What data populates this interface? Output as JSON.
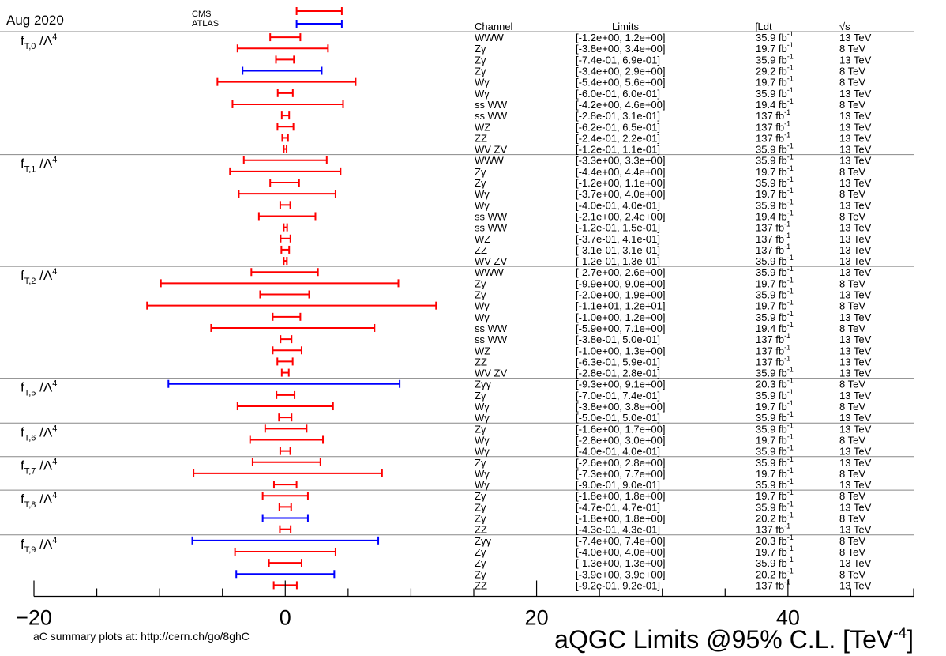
{
  "header": {
    "date": "Aug 2020",
    "legend": [
      {
        "name": "CMS",
        "color": "#ff0000"
      },
      {
        "name": "ATLAS",
        "color": "#0000ff"
      }
    ],
    "columns": {
      "channel": "Channel",
      "limits": "Limits",
      "lumi": "∫Ldt",
      "energy": "√s"
    }
  },
  "footer": {
    "note": "aC summary plots at: http://cern.ch/go/8ghC",
    "title": "aQGC Limits @95% C.L. [TeV",
    "title_sup": "-4",
    "title_end": "]"
  },
  "colors": {
    "cms": "#ff0000",
    "atlas": "#0000ff"
  },
  "chart_data": {
    "type": "interval",
    "title": "aQGC Limits @95% C.L. [TeV-4]",
    "xlim": [
      -20,
      50
    ],
    "x_ticks": [
      -20,
      0,
      20,
      40
    ],
    "grid": false,
    "legend_position": "top-center",
    "sections": [
      {
        "op": "fT,0",
        "rows": [
          {
            "channel": "WWW",
            "exp": "CMS",
            "lo": -1.2,
            "hi": 1.2,
            "limits": "[-1.2e+00, 1.2e+00]",
            "lumi": "35.9 fb",
            "energy": "13 TeV"
          },
          {
            "channel": "Zγ",
            "exp": "CMS",
            "lo": -3.8,
            "hi": 3.4,
            "limits": "[-3.8e+00, 3.4e+00]",
            "lumi": "19.7 fb",
            "energy": "8 TeV"
          },
          {
            "channel": "Zγ",
            "exp": "CMS",
            "lo": -0.74,
            "hi": 0.69,
            "limits": "[-7.4e-01, 6.9e-01]",
            "lumi": "35.9 fb",
            "energy": "13 TeV"
          },
          {
            "channel": "Zγ",
            "exp": "ATLAS",
            "lo": -3.4,
            "hi": 2.9,
            "limits": "[-3.4e+00, 2.9e+00]",
            "lumi": "29.2 fb",
            "energy": "8 TeV"
          },
          {
            "channel": "Wγ",
            "exp": "CMS",
            "lo": -5.4,
            "hi": 5.6,
            "limits": "[-5.4e+00, 5.6e+00]",
            "lumi": "19.7 fb",
            "energy": "8 TeV"
          },
          {
            "channel": "Wγ",
            "exp": "CMS",
            "lo": -0.6,
            "hi": 0.6,
            "limits": "[-6.0e-01, 6.0e-01]",
            "lumi": "35.9 fb",
            "energy": "13 TeV"
          },
          {
            "channel": "ss WW",
            "exp": "CMS",
            "lo": -4.2,
            "hi": 4.6,
            "limits": "[-4.2e+00, 4.6e+00]",
            "lumi": "19.4 fb",
            "energy": "8 TeV"
          },
          {
            "channel": "ss WW",
            "exp": "CMS",
            "lo": -0.28,
            "hi": 0.31,
            "limits": "[-2.8e-01, 3.1e-01]",
            "lumi": "137 fb",
            "energy": "13 TeV"
          },
          {
            "channel": "WZ",
            "exp": "CMS",
            "lo": -0.62,
            "hi": 0.65,
            "limits": "[-6.2e-01, 6.5e-01]",
            "lumi": "137 fb",
            "energy": "13 TeV"
          },
          {
            "channel": "ZZ",
            "exp": "CMS",
            "lo": -0.24,
            "hi": 0.22,
            "limits": "[-2.4e-01, 2.2e-01]",
            "lumi": "137 fb",
            "energy": "13 TeV"
          },
          {
            "channel": "WV ZV",
            "exp": "CMS",
            "lo": -0.12,
            "hi": 0.11,
            "limits": "[-1.2e-01, 1.1e-01]",
            "lumi": "35.9 fb",
            "energy": "13 TeV"
          }
        ]
      },
      {
        "op": "fT,1",
        "rows": [
          {
            "channel": "WWW",
            "exp": "CMS",
            "lo": -3.3,
            "hi": 3.3,
            "limits": "[-3.3e+00, 3.3e+00]",
            "lumi": "35.9 fb",
            "energy": "13 TeV"
          },
          {
            "channel": "Zγ",
            "exp": "CMS",
            "lo": -4.4,
            "hi": 4.4,
            "limits": "[-4.4e+00, 4.4e+00]",
            "lumi": "19.7 fb",
            "energy": "8 TeV"
          },
          {
            "channel": "Zγ",
            "exp": "CMS",
            "lo": -1.2,
            "hi": 1.1,
            "limits": "[-1.2e+00, 1.1e+00]",
            "lumi": "35.9 fb",
            "energy": "13 TeV"
          },
          {
            "channel": "Wγ",
            "exp": "CMS",
            "lo": -3.7,
            "hi": 4.0,
            "limits": "[-3.7e+00, 4.0e+00]",
            "lumi": "19.7 fb",
            "energy": "8 TeV"
          },
          {
            "channel": "Wγ",
            "exp": "CMS",
            "lo": -0.4,
            "hi": 0.4,
            "limits": "[-4.0e-01, 4.0e-01]",
            "lumi": "35.9 fb",
            "energy": "13 TeV"
          },
          {
            "channel": "ss WW",
            "exp": "CMS",
            "lo": -2.1,
            "hi": 2.4,
            "limits": "[-2.1e+00, 2.4e+00]",
            "lumi": "19.4 fb",
            "energy": "8 TeV"
          },
          {
            "channel": "ss WW",
            "exp": "CMS",
            "lo": -0.12,
            "hi": 0.15,
            "limits": "[-1.2e-01, 1.5e-01]",
            "lumi": "137 fb",
            "energy": "13 TeV"
          },
          {
            "channel": "WZ",
            "exp": "CMS",
            "lo": -0.37,
            "hi": 0.41,
            "limits": "[-3.7e-01, 4.1e-01]",
            "lumi": "137 fb",
            "energy": "13 TeV"
          },
          {
            "channel": "ZZ",
            "exp": "CMS",
            "lo": -0.31,
            "hi": 0.31,
            "limits": "[-3.1e-01, 3.1e-01]",
            "lumi": "137 fb",
            "energy": "13 TeV"
          },
          {
            "channel": "WV ZV",
            "exp": "CMS",
            "lo": -0.12,
            "hi": 0.13,
            "limits": "[-1.2e-01, 1.3e-01]",
            "lumi": "35.9 fb",
            "energy": "13 TeV"
          }
        ]
      },
      {
        "op": "fT,2",
        "rows": [
          {
            "channel": "WWW",
            "exp": "CMS",
            "lo": -2.7,
            "hi": 2.6,
            "limits": "[-2.7e+00, 2.6e+00]",
            "lumi": "35.9 fb",
            "energy": "13 TeV"
          },
          {
            "channel": "Zγ",
            "exp": "CMS",
            "lo": -9.9,
            "hi": 9.0,
            "limits": "[-9.9e+00, 9.0e+00]",
            "lumi": "19.7 fb",
            "energy": "8 TeV"
          },
          {
            "channel": "Zγ",
            "exp": "CMS",
            "lo": -2.0,
            "hi": 1.9,
            "limits": "[-2.0e+00, 1.9e+00]",
            "lumi": "35.9 fb",
            "energy": "13 TeV"
          },
          {
            "channel": "Wγ",
            "exp": "CMS",
            "lo": -11,
            "hi": 12,
            "limits": "[-1.1e+01, 1.2e+01]",
            "lumi": "19.7 fb",
            "energy": "8 TeV"
          },
          {
            "channel": "Wγ",
            "exp": "CMS",
            "lo": -1.0,
            "hi": 1.2,
            "limits": "[-1.0e+00, 1.2e+00]",
            "lumi": "35.9 fb",
            "energy": "13 TeV"
          },
          {
            "channel": "ss WW",
            "exp": "CMS",
            "lo": -5.9,
            "hi": 7.1,
            "limits": "[-5.9e+00, 7.1e+00]",
            "lumi": "19.4 fb",
            "energy": "8 TeV"
          },
          {
            "channel": "ss WW",
            "exp": "CMS",
            "lo": -0.38,
            "hi": 0.5,
            "limits": "[-3.8e-01, 5.0e-01]",
            "lumi": "137 fb",
            "energy": "13 TeV"
          },
          {
            "channel": "WZ",
            "exp": "CMS",
            "lo": -1.0,
            "hi": 1.3,
            "limits": "[-1.0e+00, 1.3e+00]",
            "lumi": "137 fb",
            "energy": "13 TeV"
          },
          {
            "channel": "ZZ",
            "exp": "CMS",
            "lo": -0.63,
            "hi": 0.59,
            "limits": "[-6.3e-01, 5.9e-01]",
            "lumi": "137 fb",
            "energy": "13 TeV"
          },
          {
            "channel": "WV ZV",
            "exp": "CMS",
            "lo": -0.28,
            "hi": 0.28,
            "limits": "[-2.8e-01, 2.8e-01]",
            "lumi": "35.9 fb",
            "energy": "13 TeV"
          }
        ]
      },
      {
        "op": "fT,5",
        "rows": [
          {
            "channel": "Zγγ",
            "exp": "ATLAS",
            "lo": -9.3,
            "hi": 9.1,
            "limits": "[-9.3e+00, 9.1e+00]",
            "lumi": "20.3 fb",
            "energy": "8 TeV"
          },
          {
            "channel": "Zγ",
            "exp": "CMS",
            "lo": -0.7,
            "hi": 0.74,
            "limits": "[-7.0e-01, 7.4e-01]",
            "lumi": "35.9 fb",
            "energy": "13 TeV"
          },
          {
            "channel": "Wγ",
            "exp": "CMS",
            "lo": -3.8,
            "hi": 3.8,
            "limits": "[-3.8e+00, 3.8e+00]",
            "lumi": "19.7 fb",
            "energy": "8 TeV"
          },
          {
            "channel": "Wγ",
            "exp": "CMS",
            "lo": -0.5,
            "hi": 0.5,
            "limits": "[-5.0e-01, 5.0e-01]",
            "lumi": "35.9 fb",
            "energy": "13 TeV"
          }
        ]
      },
      {
        "op": "fT,6",
        "rows": [
          {
            "channel": "Zγ",
            "exp": "CMS",
            "lo": -1.6,
            "hi": 1.7,
            "limits": "[-1.6e+00, 1.7e+00]",
            "lumi": "35.9 fb",
            "energy": "13 TeV"
          },
          {
            "channel": "Wγ",
            "exp": "CMS",
            "lo": -2.8,
            "hi": 3.0,
            "limits": "[-2.8e+00, 3.0e+00]",
            "lumi": "19.7 fb",
            "energy": "8 TeV"
          },
          {
            "channel": "Wγ",
            "exp": "CMS",
            "lo": -0.4,
            "hi": 0.4,
            "limits": "[-4.0e-01, 4.0e-01]",
            "lumi": "35.9 fb",
            "energy": "13 TeV"
          }
        ]
      },
      {
        "op": "fT,7",
        "rows": [
          {
            "channel": "Zγ",
            "exp": "CMS",
            "lo": -2.6,
            "hi": 2.8,
            "limits": "[-2.6e+00, 2.8e+00]",
            "lumi": "35.9 fb",
            "energy": "13 TeV"
          },
          {
            "channel": "Wγ",
            "exp": "CMS",
            "lo": -7.3,
            "hi": 7.7,
            "limits": "[-7.3e+00, 7.7e+00]",
            "lumi": "19.7 fb",
            "energy": "8 TeV"
          },
          {
            "channel": "Wγ",
            "exp": "CMS",
            "lo": -0.9,
            "hi": 0.9,
            "limits": "[-9.0e-01, 9.0e-01]",
            "lumi": "35.9 fb",
            "energy": "13 TeV"
          }
        ]
      },
      {
        "op": "fT,8",
        "rows": [
          {
            "channel": "Zγ",
            "exp": "CMS",
            "lo": -1.8,
            "hi": 1.8,
            "limits": "[-1.8e+00, 1.8e+00]",
            "lumi": "19.7 fb",
            "energy": "8 TeV"
          },
          {
            "channel": "Zγ",
            "exp": "CMS",
            "lo": -0.47,
            "hi": 0.47,
            "limits": "[-4.7e-01, 4.7e-01]",
            "lumi": "35.9 fb",
            "energy": "13 TeV"
          },
          {
            "channel": "Zγ",
            "exp": "ATLAS",
            "lo": -1.8,
            "hi": 1.8,
            "limits": "[-1.8e+00, 1.8e+00]",
            "lumi": "20.2 fb",
            "energy": "8 TeV"
          },
          {
            "channel": "ZZ",
            "exp": "CMS",
            "lo": -0.43,
            "hi": 0.43,
            "limits": "[-4.3e-01, 4.3e-01]",
            "lumi": "137 fb",
            "energy": "13 TeV"
          }
        ]
      },
      {
        "op": "fT,9",
        "rows": [
          {
            "channel": "Zγγ",
            "exp": "ATLAS",
            "lo": -7.4,
            "hi": 7.4,
            "limits": "[-7.4e+00, 7.4e+00]",
            "lumi": "20.3 fb",
            "energy": "8 TeV"
          },
          {
            "channel": "Zγ",
            "exp": "CMS",
            "lo": -4.0,
            "hi": 4.0,
            "limits": "[-4.0e+00, 4.0e+00]",
            "lumi": "19.7 fb",
            "energy": "8 TeV"
          },
          {
            "channel": "Zγ",
            "exp": "CMS",
            "lo": -1.3,
            "hi": 1.3,
            "limits": "[-1.3e+00, 1.3e+00]",
            "lumi": "35.9 fb",
            "energy": "13 TeV"
          },
          {
            "channel": "Zγ",
            "exp": "ATLAS",
            "lo": -3.9,
            "hi": 3.9,
            "limits": "[-3.9e+00, 3.9e+00]",
            "lumi": "20.2 fb",
            "energy": "8 TeV"
          },
          {
            "channel": "ZZ",
            "exp": "CMS",
            "lo": -0.92,
            "hi": 0.92,
            "limits": "[-9.2e-01, 9.2e-01]",
            "lumi": "137 fb",
            "energy": "13 TeV"
          }
        ]
      }
    ]
  }
}
